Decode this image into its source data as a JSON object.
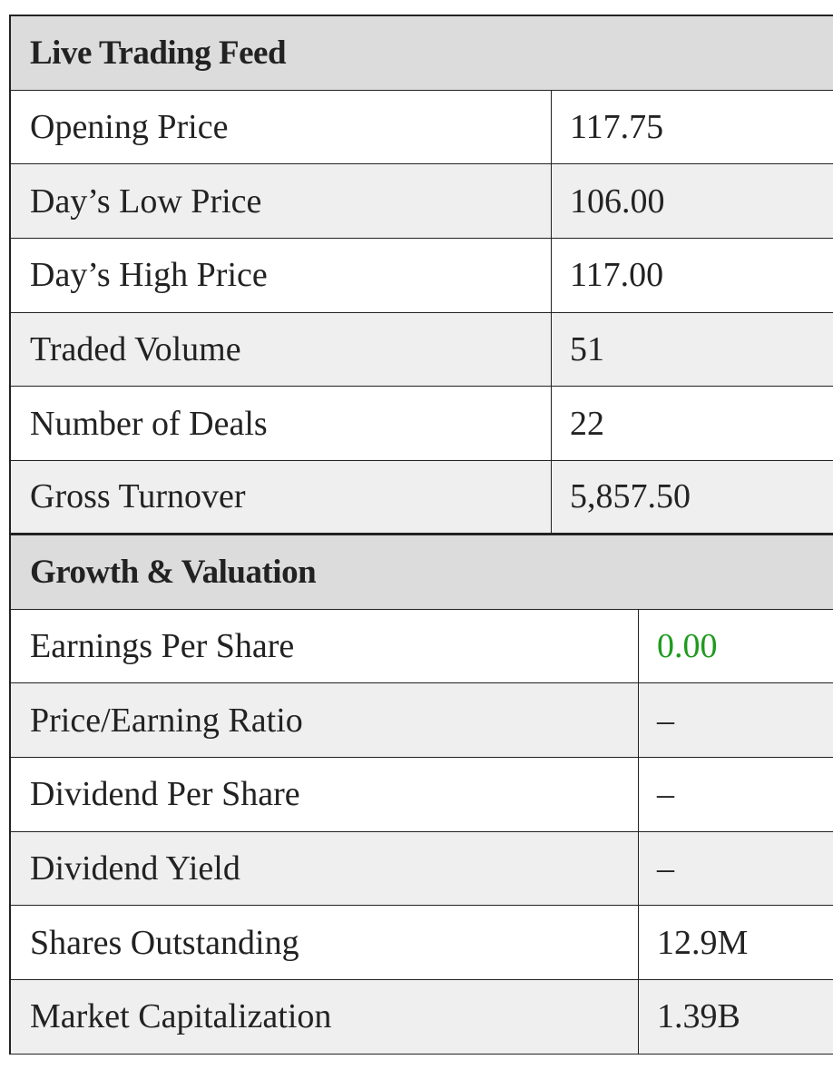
{
  "sections": [
    {
      "title": "Live Trading Feed",
      "rows": [
        [
          "Opening Price",
          "117.75"
        ],
        [
          "Day’s Low Price",
          "106.00"
        ],
        [
          "Day’s High Price",
          "117.00"
        ],
        [
          "Traded Volume",
          "51"
        ],
        [
          "Number of Deals",
          "22"
        ],
        [
          "Gross Turnover",
          "5,857.50"
        ]
      ]
    },
    {
      "title": "Growth & Valuation",
      "rows": [
        [
          "Earnings Per Share",
          "0.00"
        ],
        [
          "Price/Earning Ratio",
          "–"
        ],
        [
          "Dividend Per Share",
          "–"
        ],
        [
          "Dividend Yield",
          "–"
        ],
        [
          "Shares Outstanding",
          "12.9M"
        ],
        [
          "Market Capitalization",
          "1.39B"
        ]
      ]
    }
  ]
}
